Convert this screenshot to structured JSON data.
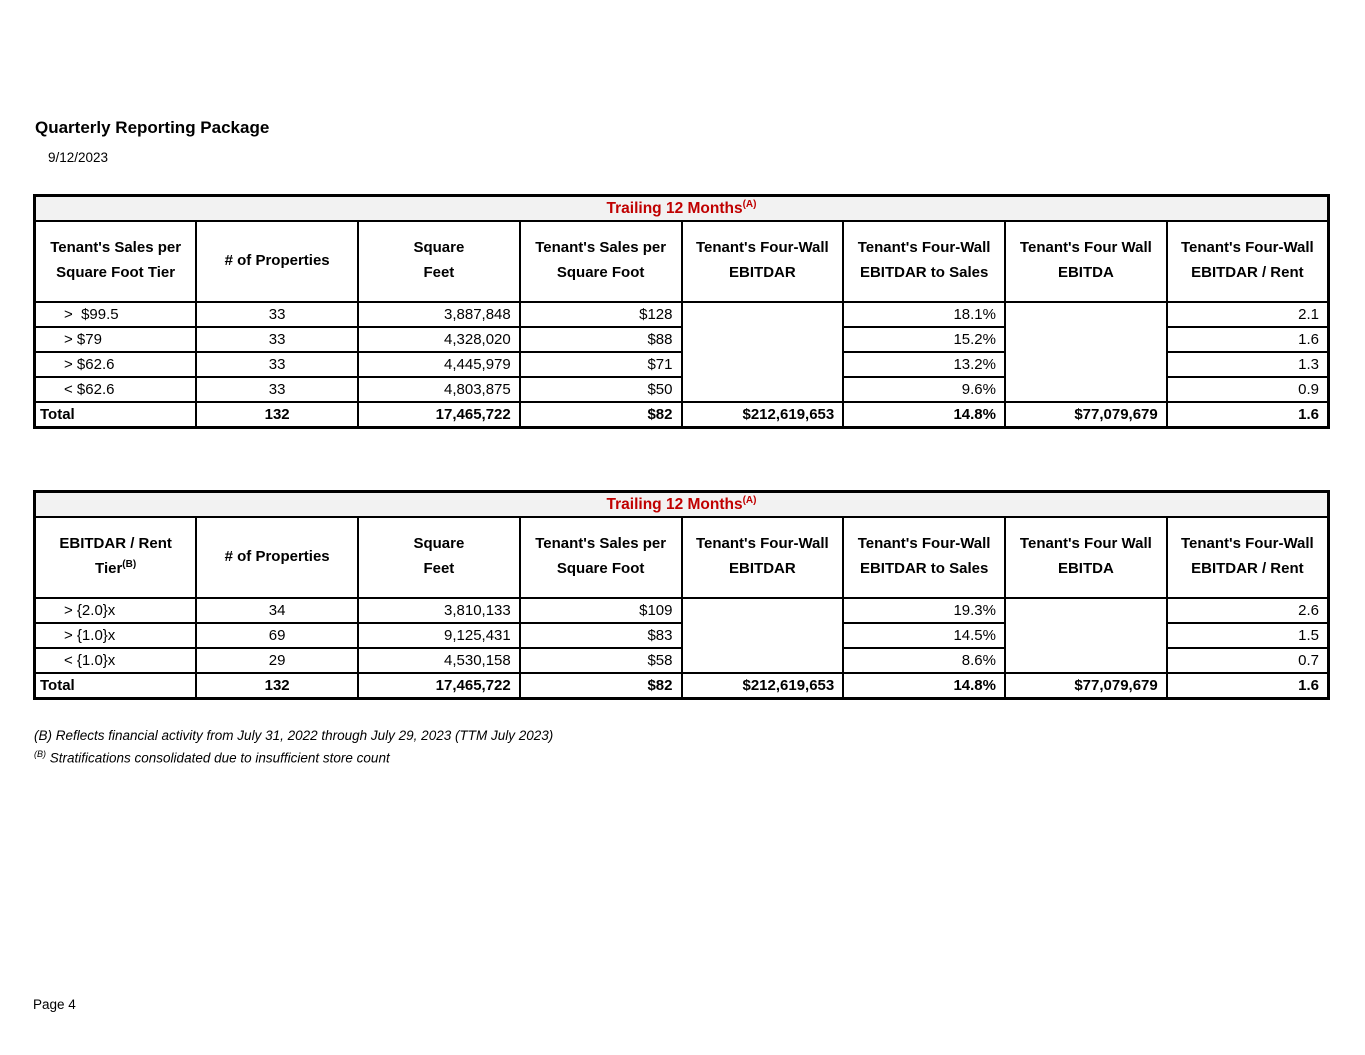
{
  "page": {
    "title": "Quarterly Reporting Package",
    "date": "9/12/2023",
    "page_number": "Page 4"
  },
  "colors": {
    "accent_red": "#C00000",
    "band_gray": "#F2F2F2",
    "border_black": "#000000"
  },
  "footnotes": [
    {
      "marker": "(B)",
      "text": " Reflects financial activity from July 31, 2022 through July 29, 2023 (TTM July 2023)"
    },
    {
      "marker": "(B)",
      "text": " Stratifications consolidated due to insufficient store count"
    }
  ],
  "tables": [
    {
      "caption": "Trailing 12 Months",
      "caption_sup": "(A)",
      "headers": {
        "col1": "Tenant's Sales per\nSquare Foot Tier",
        "col1_sup": "",
        "col2": "# of Properties",
        "col3": "Square\nFeet",
        "col4": "Tenant's Sales per\nSquare Foot",
        "col5": "Tenant's Four-Wall\nEBITDAR",
        "col6": "Tenant's Four-Wall\nEBITDAR to Sales",
        "col7": "Tenant's Four Wall\nEBITDA",
        "col8": "Tenant's Four-Wall\nEBITDAR / Rent"
      },
      "rows": [
        {
          "tier": ">  $99.5",
          "properties": "33",
          "sqft": "3,887,848",
          "sales_psf": "$128",
          "ebitdar_to_sales": "18.1%",
          "ebitdar_rent": "2.1"
        },
        {
          "tier": "> $79",
          "properties": "33",
          "sqft": "4,328,020",
          "sales_psf": "$88",
          "ebitdar_to_sales": "15.2%",
          "ebitdar_rent": "1.6"
        },
        {
          "tier": "> $62.6",
          "properties": "33",
          "sqft": "4,445,979",
          "sales_psf": "$71",
          "ebitdar_to_sales": "13.2%",
          "ebitdar_rent": "1.3"
        },
        {
          "tier": "< $62.6",
          "properties": "33",
          "sqft": "4,803,875",
          "sales_psf": "$50",
          "ebitdar_to_sales": "9.6%",
          "ebitdar_rent": "0.9"
        }
      ],
      "total": {
        "label": "Total",
        "properties": "132",
        "sqft": "17,465,722",
        "sales_psf": "$82",
        "ebitdar": "$212,619,653",
        "ebitdar_to_sales": "14.8%",
        "ebitda": "$77,079,679",
        "ebitdar_rent": "1.6"
      }
    },
    {
      "caption": "Trailing 12 Months",
      "caption_sup": "(A)",
      "headers": {
        "col1": "EBITDAR / Rent\nTier",
        "col1_sup": "(B)",
        "col2": "# of Properties",
        "col3": "Square\nFeet",
        "col4": "Tenant's Sales per\nSquare Foot",
        "col5": "Tenant's Four-Wall\nEBITDAR",
        "col6": "Tenant's Four-Wall\nEBITDAR to Sales",
        "col7": "Tenant's Four Wall\nEBITDA",
        "col8": "Tenant's Four-Wall\nEBITDAR / Rent"
      },
      "rows": [
        {
          "tier": "> {2.0}x",
          "properties": "34",
          "sqft": "3,810,133",
          "sales_psf": "$109",
          "ebitdar_to_sales": "19.3%",
          "ebitdar_rent": "2.6"
        },
        {
          "tier": "> {1.0}x",
          "properties": "69",
          "sqft": "9,125,431",
          "sales_psf": "$83",
          "ebitdar_to_sales": "14.5%",
          "ebitdar_rent": "1.5"
        },
        {
          "tier": "< {1.0}x",
          "properties": "29",
          "sqft": "4,530,158",
          "sales_psf": "$58",
          "ebitdar_to_sales": "8.6%",
          "ebitdar_rent": "0.7"
        }
      ],
      "total": {
        "label": "Total",
        "properties": "132",
        "sqft": "17,465,722",
        "sales_psf": "$82",
        "ebitdar": "$212,619,653",
        "ebitdar_to_sales": "14.8%",
        "ebitda": "$77,079,679",
        "ebitdar_rent": "1.6"
      }
    }
  ]
}
